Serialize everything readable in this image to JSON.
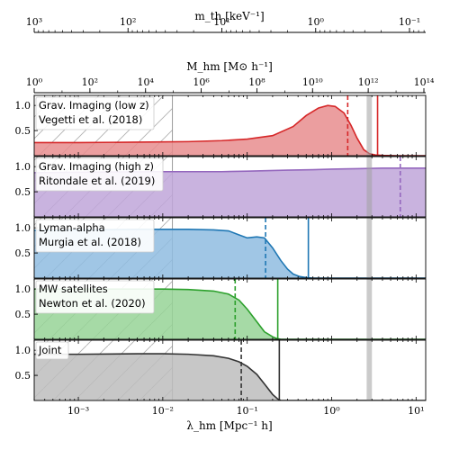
{
  "chart_data": {
    "type": "area",
    "x_axis": {
      "label": "λ_hm [Mpc⁻¹ h]",
      "scale": "log",
      "xlim": [
        0.0003,
        13
      ],
      "ticks": [
        0.001,
        0.01,
        0.1,
        1,
        10
      ],
      "tick_labels": [
        "10⁻³",
        "10⁻²",
        "10⁻¹",
        "10⁰",
        "10¹"
      ]
    },
    "mhm_axis": {
      "label": "M_hm [M⊙ h⁻¹]",
      "scale": "log",
      "ticks": [
        1,
        100,
        10000,
        1000000,
        100000000,
        10000000000,
        1000000000000,
        100000000000000
      ],
      "tick_labels": [
        "10⁰",
        "10²",
        "10⁴",
        "10⁶",
        "10⁸",
        "10¹⁰",
        "10¹²",
        "10¹⁴"
      ]
    },
    "mth_axis": {
      "label": "m_th [keV⁻¹]",
      "scale": "log",
      "ticks": [
        1000,
        100,
        10,
        1,
        0.1
      ],
      "tick_labels": [
        "10³",
        "10²",
        "10¹",
        "10⁰",
        "10⁻¹"
      ]
    },
    "y_ticks": [
      0.5,
      1.0
    ],
    "y_tick_labels": [
      "0.5",
      "1.0"
    ],
    "ylim": [
      0,
      1.2
    ],
    "hatch_region_x_max": 0.013,
    "gray_band_x": [
      2.6,
      3.0
    ],
    "panels": [
      {
        "label": "Grav. Imaging (low z)",
        "ref": "Vegetti et al. (2018)",
        "color": "#d62728",
        "fill": "#e88d8e",
        "dashed_x": 1.55,
        "solid_x": 3.5,
        "x": [
          0.0003,
          0.001,
          0.005,
          0.02,
          0.05,
          0.1,
          0.2,
          0.35,
          0.5,
          0.7,
          0.9,
          1.1,
          1.4,
          1.7,
          2.0,
          2.4,
          2.8,
          3.3,
          4.0,
          6.0,
          13
        ],
        "y": [
          0.26,
          0.26,
          0.27,
          0.28,
          0.3,
          0.33,
          0.4,
          0.58,
          0.8,
          0.95,
          1.0,
          0.98,
          0.85,
          0.6,
          0.35,
          0.12,
          0.04,
          0.015,
          0.005,
          0.0,
          0.0
        ]
      },
      {
        "label": "Grav. Imaging (high z)",
        "ref": "Ritondale et al. (2019)",
        "color": "#9467bd",
        "fill": "#c0a6d9",
        "dashed_x": 6.5,
        "solid_x": null,
        "x": [
          0.0003,
          0.001,
          0.01,
          0.05,
          0.1,
          0.3,
          0.6,
          1.0,
          2.0,
          4.0,
          13
        ],
        "y": [
          0.88,
          0.89,
          0.9,
          0.9,
          0.91,
          0.93,
          0.94,
          0.95,
          0.96,
          0.97,
          0.97
        ]
      },
      {
        "label": "Lyman-alpha",
        "ref": "Murgia et al. (2018)",
        "color": "#1f77b4",
        "fill": "#8fbce0",
        "dashed_x": 0.165,
        "solid_x": 0.53,
        "x": [
          0.0003,
          0.001,
          0.005,
          0.01,
          0.02,
          0.04,
          0.06,
          0.08,
          0.1,
          0.13,
          0.16,
          0.2,
          0.25,
          0.3,
          0.35,
          0.42,
          0.5,
          0.6,
          13
        ],
        "y": [
          0.95,
          0.96,
          0.97,
          0.97,
          0.97,
          0.96,
          0.94,
          0.86,
          0.8,
          0.82,
          0.8,
          0.6,
          0.35,
          0.18,
          0.08,
          0.03,
          0.01,
          0.0,
          0.0
        ]
      },
      {
        "label": "MW satellites",
        "ref": "Newton et al. (2020)",
        "color": "#2ca02c",
        "fill": "#97d397",
        "dashed_x": 0.072,
        "solid_x": 0.23,
        "x": [
          0.0003,
          0.001,
          0.005,
          0.01,
          0.02,
          0.04,
          0.06,
          0.08,
          0.1,
          0.13,
          0.16,
          0.2,
          0.22,
          0.25,
          13
        ],
        "y": [
          1.0,
          1.0,
          1.0,
          1.0,
          0.99,
          0.96,
          0.9,
          0.78,
          0.6,
          0.35,
          0.15,
          0.05,
          0.02,
          0.0,
          0.0
        ]
      },
      {
        "label": "Joint",
        "ref": "",
        "color": "#333333",
        "fill": "#bdbdbd",
        "dashed_x": 0.085,
        "solid_x": 0.24,
        "x": [
          0.0003,
          0.001,
          0.005,
          0.01,
          0.02,
          0.04,
          0.06,
          0.08,
          0.1,
          0.13,
          0.16,
          0.2,
          0.23,
          0.25,
          13
        ],
        "y": [
          0.92,
          0.92,
          0.93,
          0.93,
          0.92,
          0.89,
          0.84,
          0.77,
          0.68,
          0.52,
          0.33,
          0.12,
          0.03,
          0.0,
          0.0
        ]
      }
    ]
  }
}
